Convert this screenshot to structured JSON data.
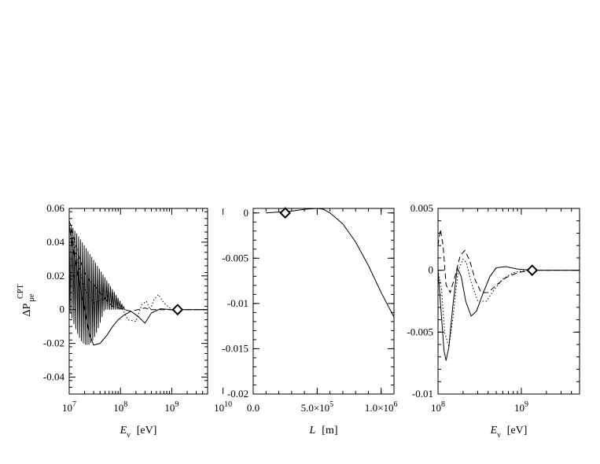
{
  "y_axis_label": {
    "main": "ΔP",
    "subscript": "μe",
    "superscript": "CPT"
  },
  "chart_data": [
    {
      "type": "line",
      "panel": "left",
      "x_log": true,
      "xlim": [
        10000000,
        5000000000
      ],
      "ylim": [
        -0.05,
        0.06
      ],
      "xlabel": {
        "italic": "E",
        "subscript": "ν",
        "unit": "[eV]"
      },
      "ylabel": "ΔP μe CPT",
      "x_ticks": [
        {
          "value": 10000000,
          "base": "10",
          "exp": "7"
        },
        {
          "value": 100000000,
          "base": "10",
          "exp": "8"
        },
        {
          "value": 1000000000,
          "base": "10",
          "exp": "9"
        },
        {
          "value": 10000000000,
          "base": "10",
          "exp": "10"
        }
      ],
      "y_ticks": [
        {
          "value": 0.06,
          "label": "0.06"
        },
        {
          "value": 0.04,
          "label": "0.04"
        },
        {
          "value": 0.02,
          "label": "0.02"
        },
        {
          "value": 0,
          "label": "0"
        },
        {
          "value": -0.02,
          "label": "-0.02"
        },
        {
          "value": -0.04,
          "label": "-0.04"
        }
      ],
      "marker": {
        "x": 1300000000,
        "y": 0,
        "shape": "diamond"
      },
      "series": [
        {
          "style": "solid",
          "x": [
            10000000,
            11000000,
            13000000,
            16000000,
            20000000,
            25000000,
            30000000,
            40000000,
            55000000,
            70000000,
            90000000,
            120000000,
            160000000,
            220000000,
            300000000,
            400000000,
            600000000,
            1000000000,
            5000000000
          ],
          "y": [
            0.05,
            0.042,
            0.03,
            0.015,
            0.0,
            -0.015,
            -0.021,
            -0.02,
            -0.015,
            -0.01,
            -0.006,
            -0.003,
            -0.001,
            -0.004,
            -0.008,
            -0.002,
            0.0005,
            0.0,
            0.0
          ]
        },
        {
          "style": "dashed",
          "x": [
            10000000,
            11000000,
            13000000,
            16000000,
            20000000,
            25000000,
            30000000,
            40000000,
            55000000,
            70000000,
            90000000,
            120000000,
            160000000,
            220000000,
            300000000,
            400000000,
            600000000,
            1000000000,
            5000000000
          ],
          "y": [
            0.053,
            0.048,
            0.04,
            0.03,
            0.022,
            0.017,
            0.015,
            0.01,
            0.005,
            0.002,
            0.001,
            0.0,
            -0.001,
            0.0,
            0.001,
            0.0,
            0.0,
            0.0,
            0.0
          ]
        },
        {
          "style": "dotted",
          "x": [
            10000000,
            13000000,
            20000000,
            30000000,
            45000000,
            70000000,
            100000000,
            140000000,
            200000000,
            260000000,
            320000000,
            380000000,
            450000000,
            550000000,
            700000000,
            1000000000,
            5000000000
          ],
          "y": [
            0.05,
            0.035,
            0.012,
            0.004,
            0.006,
            0.01,
            0.003,
            -0.006,
            -0.007,
            0.003,
            0.005,
            0.0,
            0.006,
            0.009,
            0.004,
            0.0,
            0.0
          ]
        }
      ]
    },
    {
      "type": "line",
      "panel": "middle",
      "x_log": false,
      "xlim": [
        0,
        1100000
      ],
      "ylim": [
        -0.02,
        0.0005
      ],
      "xlabel": {
        "italic": "L",
        "subscript": "",
        "unit": "[m]"
      },
      "x_ticks": [
        {
          "value": 0,
          "label": "0.0"
        },
        {
          "value": 500000,
          "label": "5.0×10",
          "exp": "5"
        },
        {
          "value": 1000000,
          "label": "1.0×10",
          "exp": "6"
        }
      ],
      "y_ticks": [
        {
          "value": 0,
          "label": "0"
        },
        {
          "value": -0.005,
          "label": "-0.005"
        },
        {
          "value": -0.01,
          "label": "-0.01"
        },
        {
          "value": -0.015,
          "label": "-0.015"
        },
        {
          "value": -0.02,
          "label": "-0.02"
        }
      ],
      "marker": {
        "x": 250000,
        "y": 0,
        "shape": "diamond"
      },
      "series": [
        {
          "style": "solid",
          "x": [
            100000,
            200000,
            300000,
            400000,
            500000,
            550000,
            600000,
            700000,
            800000,
            900000,
            1000000,
            1100000
          ],
          "y": [
            0.0,
            0.0001,
            0.0002,
            0.0004,
            0.0005,
            0.0004,
            0.0,
            -0.0012,
            -0.0032,
            -0.0058,
            -0.0088,
            -0.0115
          ]
        }
      ]
    },
    {
      "type": "line",
      "panel": "right",
      "x_log": true,
      "xlim": [
        100000000,
        5000000000
      ],
      "ylim": [
        -0.01,
        0.005
      ],
      "xlabel": {
        "italic": "E",
        "subscript": "ν",
        "unit": "[eV]"
      },
      "x_ticks": [
        {
          "value": 100000000,
          "base": "10",
          "exp": "8"
        },
        {
          "value": 1000000000,
          "base": "10",
          "exp": "9"
        }
      ],
      "y_ticks": [
        {
          "value": 0.005,
          "label": "0.005"
        },
        {
          "value": 0,
          "label": "0"
        },
        {
          "value": -0.005,
          "label": "-0.005"
        },
        {
          "value": -0.01,
          "label": "-0.01"
        }
      ],
      "marker": {
        "x": 1350000000,
        "y": 0,
        "shape": "diamond"
      },
      "series": [
        {
          "style": "solid",
          "x": [
            100000000,
            108000000,
            118000000,
            125000000,
            135000000,
            150000000,
            170000000,
            190000000,
            215000000,
            250000000,
            290000000,
            350000000,
            420000000,
            500000000,
            650000000,
            900000000,
            1300000000,
            5000000000
          ],
          "y": [
            0.0,
            -0.003,
            -0.0065,
            -0.0073,
            -0.0062,
            -0.003,
            0.0002,
            -0.0005,
            -0.0025,
            -0.0037,
            -0.0033,
            -0.0018,
            -0.0005,
            0.0002,
            0.0003,
            0.0001,
            0.0,
            0.0
          ]
        },
        {
          "style": "dashed",
          "x": [
            100000000,
            107000000,
            115000000,
            125000000,
            140000000,
            160000000,
            185000000,
            210000000,
            240000000,
            280000000,
            330000000,
            400000000,
            500000000,
            650000000,
            900000000,
            1300000000,
            5000000000
          ],
          "y": [
            0.002,
            0.0033,
            0.002,
            -0.0012,
            -0.0018,
            -0.0005,
            0.0012,
            0.0016,
            0.0008,
            -0.0008,
            -0.0018,
            -0.0018,
            -0.0012,
            -0.0006,
            -0.0002,
            0.0,
            0.0
          ]
        },
        {
          "style": "dotted",
          "x": [
            100000000,
            110000000,
            120000000,
            135000000,
            150000000,
            175000000,
            200000000,
            220000000,
            250000000,
            300000000,
            380000000,
            480000000,
            600000000,
            800000000,
            1100000000,
            5000000000
          ],
          "y": [
            0.0,
            -0.0015,
            -0.005,
            -0.0062,
            -0.004,
            0.0,
            0.0009,
            0.0006,
            -0.001,
            -0.0025,
            -0.0025,
            -0.0015,
            -0.0007,
            -0.0002,
            0.0,
            0.0
          ]
        }
      ]
    }
  ]
}
